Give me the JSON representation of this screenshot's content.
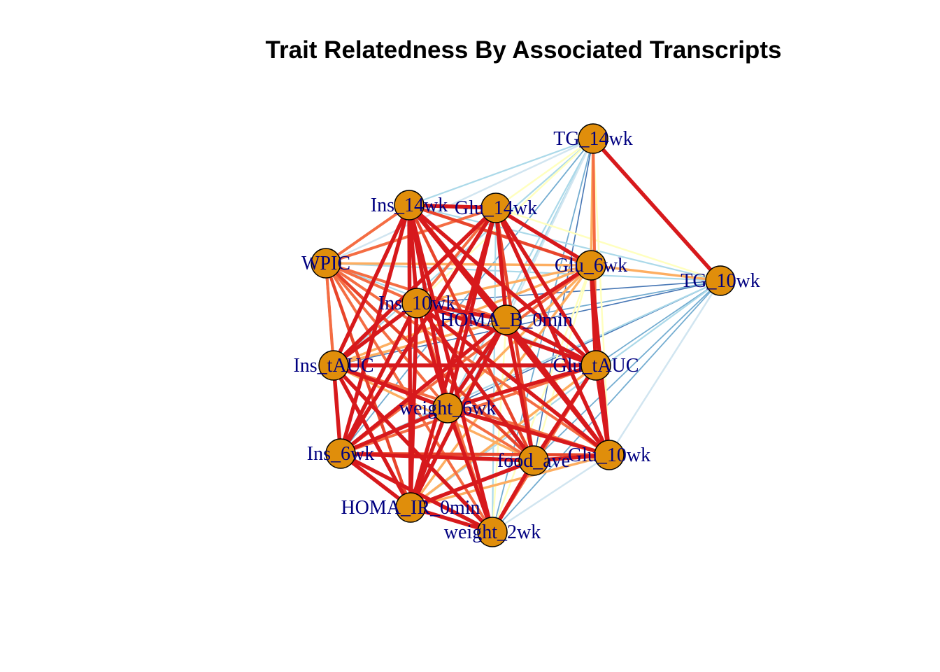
{
  "title": "Trait Relatedness By Associated Transcripts",
  "colors": {
    "node_fill": "#E08E0B",
    "node_stroke": "#000000",
    "label": "#000080",
    "edge_strong": "#D7191C",
    "edge_med_strong": "#E8452B",
    "edge_medium": "#F46D43",
    "edge_light": "#FDAE61",
    "edge_neutral": "#FFFFBF",
    "edge_weak_pos": "#D1E5F0",
    "edge_weak": "#ABD9E9",
    "edge_negative": "#74ADD1",
    "edge_strong_negative": "#4575B4"
  },
  "nodes": [
    {
      "id": "TG_14wk"
    },
    {
      "id": "Ins_14wk"
    },
    {
      "id": "Glu_14wk"
    },
    {
      "id": "WPIC"
    },
    {
      "id": "Glu_6wk"
    },
    {
      "id": "TG_10wk"
    },
    {
      "id": "Ins_10wk"
    },
    {
      "id": "HOMA_B_0min"
    },
    {
      "id": "Ins_tAUC"
    },
    {
      "id": "Glu_tAUC"
    },
    {
      "id": "weight_6wk"
    },
    {
      "id": "Ins_6wk"
    },
    {
      "id": "food_ave"
    },
    {
      "id": "Glu_10wk"
    },
    {
      "id": "HOMA_IR_0min"
    },
    {
      "id": "weight_2wk"
    }
  ]
}
